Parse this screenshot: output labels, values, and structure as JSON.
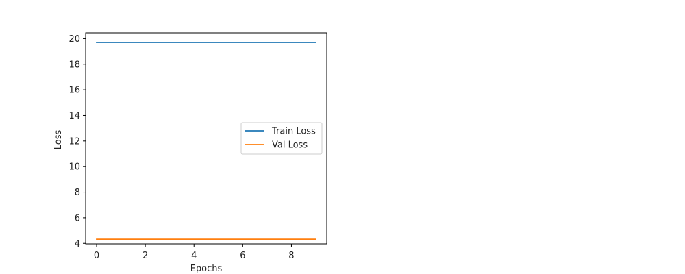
{
  "chart_data": {
    "type": "line",
    "title": "",
    "xlabel": "Epochs",
    "ylabel": "Loss",
    "xlim": [
      -0.45,
      9.45
    ],
    "ylim": [
      3.96,
      20.45
    ],
    "x_ticks": [
      0,
      2,
      4,
      6,
      8
    ],
    "y_ticks": [
      4,
      6,
      8,
      10,
      12,
      14,
      16,
      18,
      20
    ],
    "x": [
      0,
      1,
      2,
      3,
      4,
      5,
      6,
      7,
      8,
      9
    ],
    "series": [
      {
        "name": "Train Loss",
        "color": "#1f77b4",
        "values": [
          19.7,
          19.7,
          19.7,
          19.7,
          19.7,
          19.7,
          19.7,
          19.7,
          19.7,
          19.7
        ]
      },
      {
        "name": "Val Loss",
        "color": "#ff7f0e",
        "values": [
          4.33,
          4.33,
          4.33,
          4.33,
          4.33,
          4.33,
          4.33,
          4.33,
          4.33,
          4.33
        ]
      }
    ],
    "grid": false,
    "legend_position": "center-right"
  }
}
